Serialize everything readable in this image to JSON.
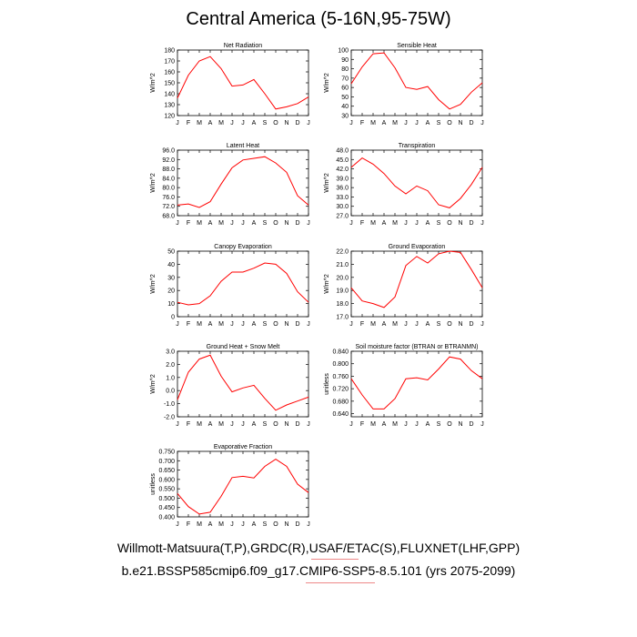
{
  "title": "Central America (5-16N,95-75W)",
  "footer": {
    "line1": "Willmott-Matsuura(T,P),GRDC(R),USAF/ETAC(S),FLUXNET(LHF,GPP)",
    "line2": "b.e21.BSSP585cmip6.f09_g17.CMIP6-SSP5-8.5.101 (yrs 2075-2099)"
  },
  "colors": {
    "line": "#ff0000",
    "axis": "#000000"
  },
  "chart_data": [
    {
      "type": "line",
      "title": "Net Radiation",
      "ylabel": "W/m^2",
      "categories": [
        "J",
        "F",
        "M",
        "A",
        "M",
        "J",
        "J",
        "A",
        "S",
        "O",
        "N",
        "D",
        "J"
      ],
      "ylim": [
        120,
        180
      ],
      "yticks": [
        "120",
        "130",
        "140",
        "150",
        "160",
        "170",
        "180"
      ],
      "series": [
        {
          "values": [
            136,
            157,
            170,
            174,
            163,
            147,
            148,
            153,
            140,
            126,
            128,
            131,
            137
          ]
        }
      ]
    },
    {
      "type": "line",
      "title": "Sensible Heat",
      "ylabel": "W/m^2",
      "categories": [
        "J",
        "F",
        "M",
        "A",
        "M",
        "J",
        "J",
        "A",
        "S",
        "O",
        "N",
        "D",
        "J"
      ],
      "ylim": [
        30,
        100
      ],
      "yticks": [
        "30",
        "40",
        "50",
        "60",
        "70",
        "80",
        "90",
        "100"
      ],
      "series": [
        {
          "values": [
            64,
            82,
            96,
            97,
            81,
            60,
            58,
            61,
            47,
            37,
            42,
            55,
            65
          ]
        }
      ]
    },
    {
      "type": "line",
      "title": "Latent Heat",
      "ylabel": "W/m^2",
      "categories": [
        "J",
        "F",
        "M",
        "A",
        "M",
        "J",
        "J",
        "A",
        "S",
        "O",
        "N",
        "D",
        "J"
      ],
      "ylim": [
        68,
        96
      ],
      "yticks": [
        "68.0",
        "72.0",
        "76.0",
        "80.0",
        "84.0",
        "88.0",
        "92.0",
        "96.0"
      ],
      "series": [
        {
          "values": [
            72.5,
            73.0,
            71.5,
            74.0,
            81.5,
            88.5,
            91.8,
            92.5,
            93.2,
            90.5,
            86.5,
            76.5,
            72.5
          ]
        }
      ]
    },
    {
      "type": "line",
      "title": "Transpiration",
      "ylabel": "W/m^2",
      "categories": [
        "J",
        "F",
        "M",
        "A",
        "M",
        "J",
        "J",
        "A",
        "S",
        "O",
        "N",
        "D",
        "J"
      ],
      "ylim": [
        27,
        48
      ],
      "yticks": [
        "27.0",
        "30.0",
        "33.0",
        "36.0",
        "39.0",
        "42.0",
        "45.0",
        "48.0"
      ],
      "series": [
        {
          "values": [
            42.5,
            45.5,
            43.5,
            40.5,
            36.5,
            34.0,
            36.5,
            35.0,
            30.5,
            29.5,
            32.5,
            37.0,
            42.5
          ]
        }
      ]
    },
    {
      "type": "line",
      "title": "Canopy Evaporation",
      "ylabel": "W/m^2",
      "categories": [
        "J",
        "F",
        "M",
        "A",
        "M",
        "J",
        "J",
        "A",
        "S",
        "O",
        "N",
        "D",
        "J"
      ],
      "ylim": [
        0,
        50
      ],
      "yticks": [
        "0",
        "10",
        "20",
        "30",
        "40",
        "50"
      ],
      "series": [
        {
          "values": [
            11,
            9,
            10,
            16,
            27,
            34,
            34,
            37,
            41,
            40,
            33,
            19,
            11
          ]
        }
      ]
    },
    {
      "type": "line",
      "title": "Ground Evaporation",
      "ylabel": "W/m^2",
      "categories": [
        "J",
        "F",
        "M",
        "A",
        "M",
        "J",
        "J",
        "A",
        "S",
        "O",
        "N",
        "D",
        "J"
      ],
      "ylim": [
        17,
        22
      ],
      "yticks": [
        "17.0",
        "18.0",
        "19.0",
        "20.0",
        "21.0",
        "22.0"
      ],
      "series": [
        {
          "values": [
            19.2,
            18.2,
            18.0,
            17.7,
            18.5,
            20.9,
            21.6,
            21.1,
            21.8,
            22.0,
            21.9,
            20.6,
            19.2
          ]
        }
      ]
    },
    {
      "type": "line",
      "title": "Ground Heat + Snow Melt",
      "ylabel": "W/m^2",
      "categories": [
        "J",
        "F",
        "M",
        "A",
        "M",
        "J",
        "J",
        "A",
        "S",
        "O",
        "N",
        "D",
        "J"
      ],
      "ylim": [
        -2,
        3
      ],
      "yticks": [
        "-2.0",
        "-1.0",
        "0.0",
        "1.0",
        "2.0",
        "3.0"
      ],
      "series": [
        {
          "values": [
            -0.7,
            1.4,
            2.4,
            2.7,
            1.1,
            -0.1,
            0.2,
            0.4,
            -0.6,
            -1.5,
            -1.1,
            -0.8,
            -0.5
          ]
        }
      ]
    },
    {
      "type": "line",
      "title": "Soil moisture factor (BTRAN or BTRANMN)",
      "ylabel": "unitless",
      "categories": [
        "J",
        "F",
        "M",
        "A",
        "M",
        "J",
        "J",
        "A",
        "S",
        "O",
        "N",
        "D",
        "J"
      ],
      "ylim": [
        0.63,
        0.84
      ],
      "yticks": [
        "0.640",
        "0.680",
        "0.720",
        "0.760",
        "0.800",
        "0.840"
      ],
      "series": [
        {
          "values": [
            0.752,
            0.7,
            0.655,
            0.655,
            0.688,
            0.752,
            0.755,
            0.748,
            0.783,
            0.822,
            0.815,
            0.778,
            0.752
          ]
        }
      ]
    },
    {
      "type": "line",
      "title": "Evaporative Fraction",
      "ylabel": "unitless",
      "categories": [
        "J",
        "F",
        "M",
        "A",
        "M",
        "J",
        "J",
        "A",
        "S",
        "O",
        "N",
        "D",
        "J"
      ],
      "ylim": [
        0.4,
        0.75
      ],
      "yticks": [
        "0.400",
        "0.450",
        "0.500",
        "0.550",
        "0.600",
        "0.650",
        "0.700",
        "0.750"
      ],
      "series": [
        {
          "values": [
            0.525,
            0.455,
            0.415,
            0.425,
            0.51,
            0.61,
            0.617,
            0.608,
            0.67,
            0.708,
            0.67,
            0.575,
            0.53
          ]
        }
      ]
    }
  ]
}
